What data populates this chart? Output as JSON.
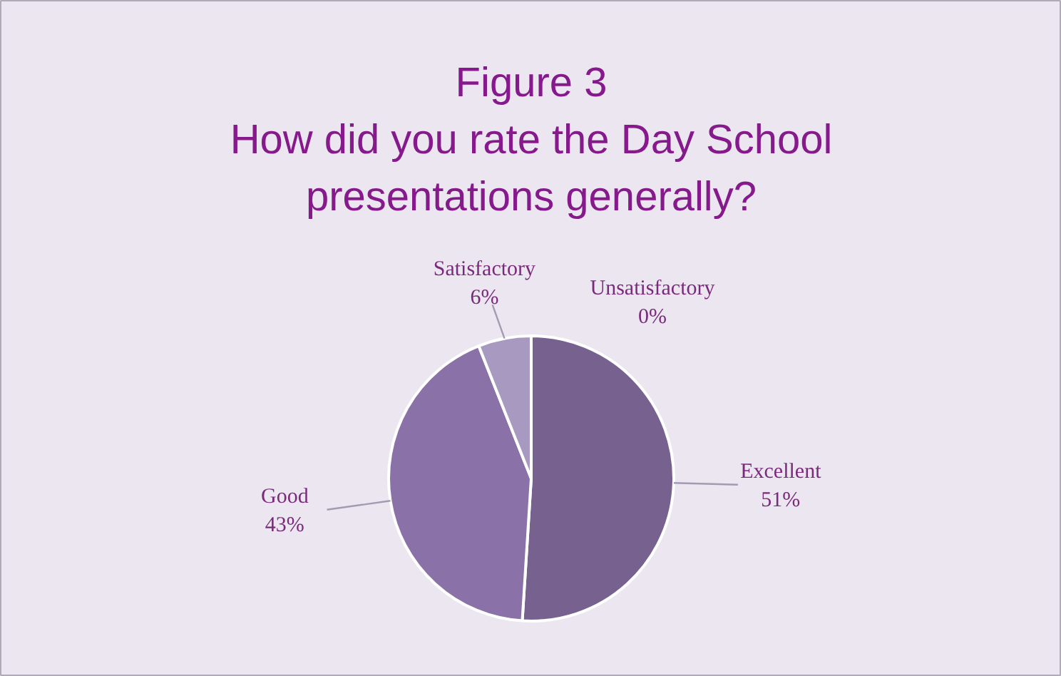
{
  "chart_data": {
    "type": "pie",
    "title": "Figure 3",
    "subtitle": "How did you rate the Day School presentations generally?",
    "categories": [
      "Excellent",
      "Good",
      "Satisfactory",
      "Unsatisfactory"
    ],
    "values": [
      51,
      43,
      6,
      0
    ],
    "colors": [
      "#76618f",
      "#8a72a8",
      "#a899c0",
      "#c3b8d6"
    ],
    "value_labels": [
      "51%",
      "43%",
      "6%",
      "0%"
    ]
  }
}
